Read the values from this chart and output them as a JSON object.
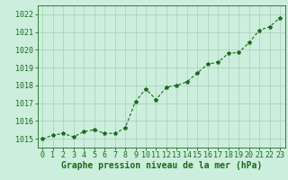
{
  "x": [
    0,
    1,
    2,
    3,
    4,
    5,
    6,
    7,
    8,
    9,
    10,
    11,
    12,
    13,
    14,
    15,
    16,
    17,
    18,
    19,
    20,
    21,
    22,
    23
  ],
  "y": [
    1015.0,
    1015.2,
    1015.3,
    1015.1,
    1015.4,
    1015.5,
    1015.3,
    1015.3,
    1015.6,
    1017.1,
    1017.8,
    1017.2,
    1017.9,
    1018.0,
    1018.2,
    1018.7,
    1019.2,
    1019.3,
    1019.8,
    1019.85,
    1020.4,
    1021.1,
    1021.3,
    1021.8
  ],
  "line_color": "#1a6b1a",
  "marker": "*",
  "marker_size": 3,
  "line_width": 0.8,
  "bg_color": "#cceedd",
  "grid_color": "#aaccbb",
  "xlabel": "Graphe pression niveau de la mer (hPa)",
  "xlabel_color": "#1a6b1a",
  "xlabel_fontsize": 7,
  "ylabel_ticks": [
    1015,
    1016,
    1017,
    1018,
    1019,
    1020,
    1021,
    1022
  ],
  "ylim": [
    1014.5,
    1022.5
  ],
  "xlim": [
    -0.5,
    23.5
  ],
  "tick_color": "#1a6b1a",
  "tick_fontsize": 6
}
